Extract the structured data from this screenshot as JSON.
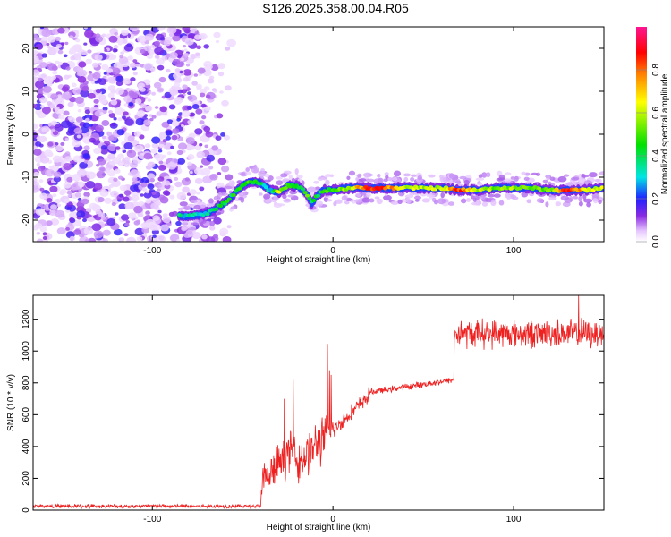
{
  "title": "S126.2025.358.00.04.R05",
  "chart_data": [
    {
      "type": "heatmap",
      "name": "spectrogram",
      "xlabel": "Height of straight line (km)",
      "ylabel": "Frequency (Hz)",
      "xlim": [
        -166,
        150
      ],
      "ylim": [
        -25,
        25
      ],
      "xticks": [
        -100,
        0,
        100
      ],
      "yticks": [
        -20,
        -10,
        0,
        10,
        20
      ],
      "colorbar": {
        "label": "Normalized spectral amplitude",
        "range": [
          0,
          1
        ],
        "ticks": [
          0.0,
          0.2,
          0.4,
          0.6,
          0.8
        ],
        "colors": [
          "#ffffff",
          "#e6c6ff",
          "#8a2be2",
          "#2020ff",
          "#00e5e5",
          "#00e000",
          "#ffff00",
          "#ff8000",
          "#ff0000",
          "#ff1493"
        ]
      },
      "ridge": {
        "description_values": "dominant frequency (Hz) vs height (km)",
        "x": [
          -90,
          -80,
          -70,
          -60,
          -55,
          -50,
          -45,
          -40,
          -35,
          -30,
          -25,
          -20,
          -15,
          -12,
          -8,
          -5,
          0,
          10,
          20,
          30,
          40,
          50,
          60,
          70,
          80,
          90,
          100,
          110,
          120,
          130,
          140,
          150
        ],
        "y": [
          -19,
          -19,
          -18.5,
          -16,
          -14,
          -12,
          -11,
          -11.5,
          -13,
          -13.5,
          -12,
          -12,
          -13.5,
          -16,
          -14,
          -13,
          -13,
          -12.5,
          -12.5,
          -12.5,
          -12.5,
          -12.5,
          -12.5,
          -13,
          -13,
          -12.5,
          -12.5,
          -12.5,
          -13,
          -13,
          -13,
          -12.5
        ],
        "amplitude": [
          0.3,
          0.35,
          0.35,
          0.4,
          0.45,
          0.5,
          0.5,
          0.4,
          0.3,
          0.6,
          0.5,
          0.4,
          0.5,
          0.4,
          0.4,
          0.45,
          0.5,
          0.6,
          0.85,
          0.8,
          0.6,
          0.6,
          0.6,
          0.85,
          0.6,
          0.55,
          0.55,
          0.5,
          0.55,
          0.85,
          0.7,
          0.6
        ]
      },
      "noise_region_x": [
        -166,
        -55
      ]
    },
    {
      "type": "line",
      "name": "snr",
      "xlabel": "Height of straight line (km)",
      "ylabel": "SNR (10 * v/v)",
      "xlim": [
        -166,
        150
      ],
      "ylim": [
        0,
        1350
      ],
      "xticks": [
        -100,
        0,
        100
      ],
      "yticks": [
        0,
        200,
        400,
        600,
        800,
        1000,
        1200
      ],
      "color": "#ee2020",
      "segments": [
        {
          "x": [
            -166,
            -40
          ],
          "mean": 25,
          "noise": 15
        },
        {
          "x": [
            -40,
            -20
          ],
          "mean_start": 150,
          "mean_end": 420,
          "noise": 160
        },
        {
          "x": [
            -20,
            0
          ],
          "mean_start": 300,
          "mean_end": 500,
          "noise": 180
        },
        {
          "x": [
            0,
            20
          ],
          "mean_start": 500,
          "mean_end": 720,
          "noise": 60
        },
        {
          "x": [
            20,
            67
          ],
          "mean_start": 740,
          "mean_end": 820,
          "noise": 25
        },
        {
          "x": [
            67,
            150
          ],
          "mean": 1110,
          "noise": 110
        }
      ],
      "spikes": [
        {
          "x": -3,
          "y": 1045
        },
        {
          "x": -2,
          "y": 880
        },
        {
          "x": -1,
          "y": 850
        },
        {
          "x": -22,
          "y": 820
        },
        {
          "x": -27,
          "y": 700
        },
        {
          "x": 136,
          "y": 1350
        }
      ]
    }
  ]
}
